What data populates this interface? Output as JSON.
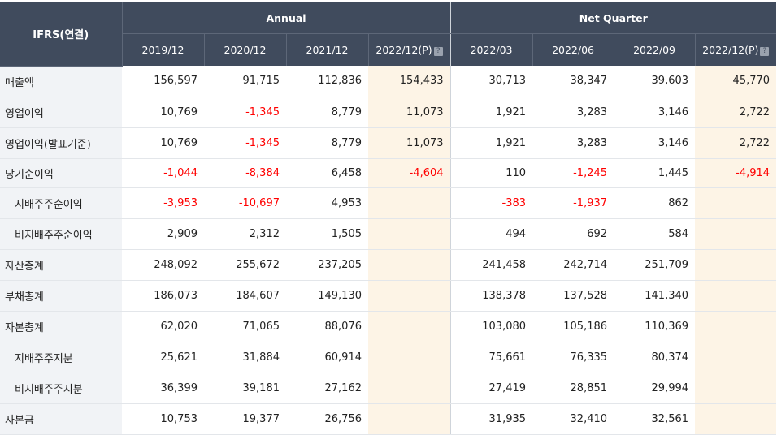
{
  "table": {
    "corner_label": "IFRS(연결)",
    "group_headers": [
      "Annual",
      "Net Quarter"
    ],
    "columns": [
      "2019/12",
      "2020/12",
      "2021/12",
      "2022/12(P)",
      "2022/03",
      "2022/06",
      "2022/09",
      "2022/12(P)"
    ],
    "help_icon": "?",
    "rows": [
      {
        "label": "매출액",
        "sub": false,
        "cells": [
          "156,597",
          "91,715",
          "112,836",
          "154,433",
          "30,713",
          "38,347",
          "39,603",
          "45,770"
        ]
      },
      {
        "label": "영업이익",
        "sub": false,
        "cells": [
          "10,769",
          "-1,345",
          "8,779",
          "11,073",
          "1,921",
          "3,283",
          "3,146",
          "2,722"
        ]
      },
      {
        "label": "영업이익(발표기준)",
        "sub": false,
        "cells": [
          "10,769",
          "-1,345",
          "8,779",
          "11,073",
          "1,921",
          "3,283",
          "3,146",
          "2,722"
        ]
      },
      {
        "label": "당기순이익",
        "sub": false,
        "cells": [
          "-1,044",
          "-8,384",
          "6,458",
          "-4,604",
          "110",
          "-1,245",
          "1,445",
          "-4,914"
        ]
      },
      {
        "label": "지배주주순이익",
        "sub": true,
        "cells": [
          "-3,953",
          "-10,697",
          "4,953",
          "",
          "-383",
          "-1,937",
          "862",
          ""
        ]
      },
      {
        "label": "비지배주주순이익",
        "sub": true,
        "cells": [
          "2,909",
          "2,312",
          "1,505",
          "",
          "494",
          "692",
          "584",
          ""
        ]
      },
      {
        "label": "자산총계",
        "sub": false,
        "cells": [
          "248,092",
          "255,672",
          "237,205",
          "",
          "241,458",
          "242,714",
          "251,709",
          ""
        ]
      },
      {
        "label": "부채총계",
        "sub": false,
        "cells": [
          "186,073",
          "184,607",
          "149,130",
          "",
          "138,378",
          "137,528",
          "141,340",
          ""
        ]
      },
      {
        "label": "자본총계",
        "sub": false,
        "cells": [
          "62,020",
          "71,065",
          "88,076",
          "",
          "103,080",
          "105,186",
          "110,369",
          ""
        ]
      },
      {
        "label": "지배주주지분",
        "sub": true,
        "cells": [
          "25,621",
          "31,884",
          "60,914",
          "",
          "75,661",
          "76,335",
          "80,374",
          ""
        ]
      },
      {
        "label": "비지배주주지분",
        "sub": true,
        "cells": [
          "36,399",
          "39,181",
          "27,162",
          "",
          "27,419",
          "28,851",
          "29,994",
          ""
        ]
      },
      {
        "label": "자본금",
        "sub": false,
        "cells": [
          "10,753",
          "19,377",
          "26,756",
          "",
          "31,935",
          "32,410",
          "32,561",
          ""
        ]
      }
    ]
  }
}
